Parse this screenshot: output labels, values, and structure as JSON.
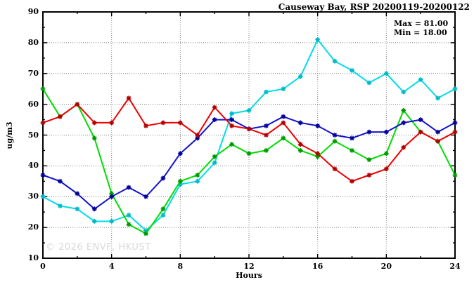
{
  "chart_data": {
    "type": "line",
    "title": "Causeway Bay, RSP 20200119-20200122",
    "xlabel": "Hours",
    "ylabel": "ug/m3",
    "watermark": "© 2026 ENVF, HKUST",
    "annotations": [
      "Max = 81.00",
      "Min = 18.00"
    ],
    "xlim": [
      0,
      24
    ],
    "ylim": [
      10,
      90
    ],
    "xticks": [
      0,
      4,
      8,
      12,
      16,
      20,
      24
    ],
    "yticks": [
      10,
      20,
      30,
      40,
      50,
      60,
      70,
      80,
      90
    ],
    "x_minor_interval": 2,
    "y_minor_interval": 5,
    "grid": "dotted-major",
    "legend": "none",
    "grid_color": "#808080",
    "x": [
      0,
      1,
      2,
      3,
      4,
      5,
      6,
      7,
      8,
      9,
      10,
      11,
      12,
      13,
      14,
      15,
      16,
      17,
      18,
      19,
      20,
      21,
      22,
      23,
      24
    ],
    "series": [
      {
        "name": "cyan-line",
        "color": "#00dde6",
        "marker_color": "#00b8c8",
        "values": [
          30,
          27,
          26,
          22,
          22,
          24,
          19,
          24,
          34,
          35,
          41,
          57,
          58,
          64,
          65,
          69,
          81,
          74,
          71,
          67,
          70,
          64,
          68,
          62,
          65
        ]
      },
      {
        "name": "green-line",
        "color": "#00dd00",
        "marker_color": "#009900",
        "values": [
          65,
          56,
          60,
          49,
          31,
          21,
          18,
          26,
          35,
          37,
          43,
          47,
          44,
          45,
          49,
          45,
          43,
          48,
          45,
          42,
          44,
          58,
          51,
          48,
          37
        ]
      },
      {
        "name": "blue-line",
        "color": "#1111cc",
        "marker_color": "#000099",
        "values": [
          37,
          35,
          31,
          26,
          30,
          33,
          30,
          36,
          44,
          49,
          55,
          55,
          52,
          53,
          56,
          54,
          53,
          50,
          49,
          51,
          51,
          54,
          55,
          51,
          54
        ]
      },
      {
        "name": "red-line",
        "color": "#ee0000",
        "marker_color": "#b00000",
        "values": [
          54,
          56,
          60,
          54,
          54,
          62,
          53,
          54,
          54,
          50,
          59,
          53,
          52,
          50,
          54,
          47,
          44,
          39,
          35,
          37,
          39,
          46,
          51,
          48,
          51
        ]
      }
    ]
  }
}
